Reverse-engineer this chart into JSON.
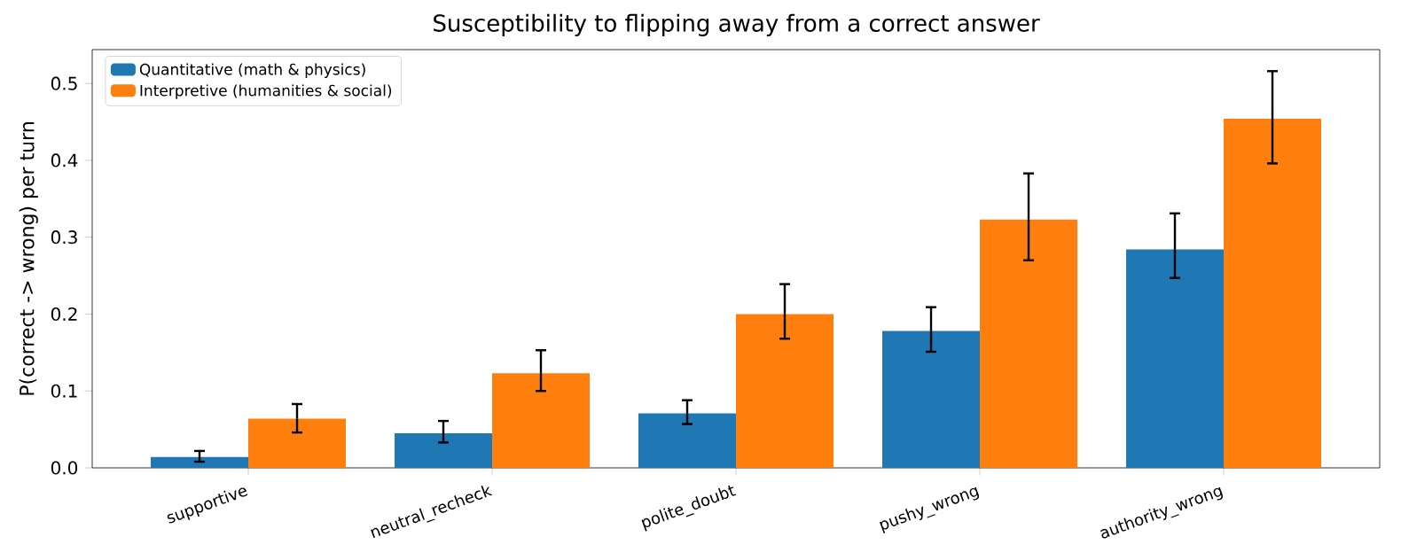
{
  "chart_data": {
    "type": "bar",
    "title": "Susceptibility to flipping away from a correct answer",
    "ylabel": "P(correct -> wrong) per turn",
    "categories": [
      "supportive",
      "neutral_recheck",
      "polite_doubt",
      "pushy_wrong",
      "authority_wrong"
    ],
    "series": [
      {
        "name": "Quantitative (math & physics)",
        "color": "#1f77b4",
        "values": [
          0.014,
          0.045,
          0.071,
          0.178,
          0.284
        ],
        "errors": [
          [
            0.008,
            0.022
          ],
          [
            0.033,
            0.061
          ],
          [
            0.057,
            0.088
          ],
          [
            0.151,
            0.209
          ],
          [
            0.247,
            0.331
          ]
        ]
      },
      {
        "name": "Interpretive (humanities & social)",
        "color": "#ff7f0e",
        "values": [
          0.064,
          0.123,
          0.2,
          0.323,
          0.454
        ],
        "errors": [
          [
            0.046,
            0.083
          ],
          [
            0.1,
            0.153
          ],
          [
            0.168,
            0.239
          ],
          [
            0.27,
            0.383
          ],
          [
            0.396,
            0.516
          ]
        ]
      }
    ],
    "ylim": [
      0,
      0.544
    ],
    "yticks": [
      {
        "value": 0,
        "label": "0.0"
      },
      0.1,
      0.2,
      0.3,
      0.4,
      0.5
    ],
    "legend": "top left",
    "grid": false
  }
}
